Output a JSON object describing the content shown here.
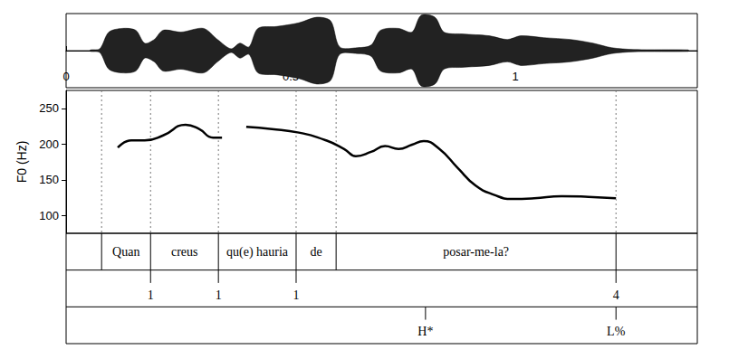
{
  "chart_data": {
    "type": "line",
    "y_label": "F0 (Hz)",
    "xlim": [
      0,
      1.405
    ],
    "xticks": [
      0,
      0.5,
      1
    ],
    "ylim": [
      75,
      275
    ],
    "yticks": [
      100,
      150,
      200,
      250
    ],
    "grid": false,
    "color": "#000000",
    "x": [
      0.115,
      0.145,
      0.175,
      0.216,
      0.266,
      0.296,
      0.327,
      0.347,
      0.374,
      0.401,
      0.458,
      0.518,
      0.579,
      0.619,
      0.645,
      0.679,
      0.71,
      0.74,
      0.77,
      0.796,
      0.831,
      0.871,
      0.911,
      0.952,
      0.992,
      1.042,
      1.103,
      1.163,
      1.224
    ],
    "values": [
      195,
      205,
      205,
      212,
      227,
      221,
      209,
      209,
      null,
      224,
      221,
      216,
      205,
      193,
      183,
      189,
      197,
      193,
      199,
      204,
      193,
      167,
      142,
      129,
      123,
      124,
      127,
      126,
      124
    ],
    "waveform": {
      "x": [
        0.054,
        0.075,
        0.095,
        0.125,
        0.155,
        0.175,
        0.196,
        0.216,
        0.256,
        0.306,
        0.337,
        0.367,
        0.387,
        0.407,
        0.427,
        0.468,
        0.518,
        0.558,
        0.589,
        0.609,
        0.649,
        0.679,
        0.7,
        0.74,
        0.77,
        0.79,
        0.821,
        0.841,
        0.881,
        0.942,
        0.982,
        1.012,
        1.063,
        1.123,
        1.173,
        1.214,
        1.264,
        1.385
      ],
      "amplitude": [
        0.02,
        0.05,
        0.5,
        0.6,
        0.55,
        0.2,
        0.3,
        0.55,
        0.5,
        0.6,
        0.3,
        0.05,
        0.2,
        0.1,
        0.6,
        0.65,
        0.75,
        0.9,
        0.8,
        0.1,
        0.08,
        0.15,
        0.55,
        0.6,
        0.5,
        0.95,
        0.9,
        0.5,
        0.45,
        0.4,
        0.3,
        0.4,
        0.35,
        0.3,
        0.2,
        0.08,
        0.03,
        0.02
      ],
      "amplitude_lim": [
        -1,
        1
      ]
    },
    "tiers": [
      {
        "type": "interval",
        "boundaries": [
          0.079,
          0.188,
          0.339,
          0.512,
          0.601,
          1.224
        ],
        "labels": [
          "Quan",
          "creus",
          "qu(e) hauria",
          "de",
          "posar-me-la?"
        ]
      },
      {
        "type": "point",
        "times": [
          0.188,
          0.339,
          0.512,
          1.224
        ],
        "labels": [
          "1",
          "1",
          "1",
          "4"
        ]
      },
      {
        "type": "point",
        "times": [
          0.8,
          1.224
        ],
        "labels": [
          "H*",
          "L%"
        ]
      }
    ]
  }
}
